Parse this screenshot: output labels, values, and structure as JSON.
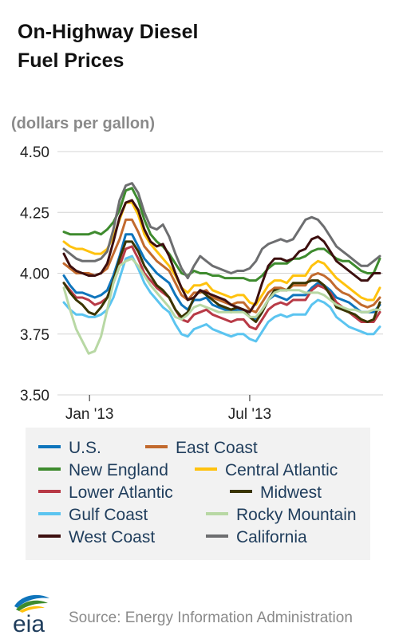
{
  "title_line1": "On-Highway Diesel",
  "title_line2": "Fuel Prices",
  "unit_label": "(dollars per gallon)",
  "source": "Source: Energy Information Administration",
  "logo_text": "eia",
  "chart_data": {
    "type": "line",
    "title": "On-Highway Diesel Fuel Prices",
    "ylabel": "(dollars per gallon)",
    "xlabel": "",
    "ylim": [
      3.5,
      4.5
    ],
    "yticks": [
      3.5,
      3.75,
      4.0,
      4.25,
      4.5
    ],
    "ytick_labels": [
      "3.50",
      "3.75",
      "4.00",
      "4.25",
      "4.50"
    ],
    "x_tick_labels": [
      "Jan '13",
      "Jul '13"
    ],
    "grid": true,
    "legend_position": "bottom",
    "x": [
      "2012-12-03",
      "2012-12-10",
      "2012-12-17",
      "2012-12-24",
      "2012-12-31",
      "2013-01-07",
      "2013-01-14",
      "2013-01-21",
      "2013-01-28",
      "2013-02-04",
      "2013-02-11",
      "2013-02-18",
      "2013-02-25",
      "2013-03-04",
      "2013-03-11",
      "2013-03-18",
      "2013-03-25",
      "2013-04-01",
      "2013-04-08",
      "2013-04-15",
      "2013-04-22",
      "2013-04-29",
      "2013-05-06",
      "2013-05-13",
      "2013-05-20",
      "2013-05-27",
      "2013-06-03",
      "2013-06-10",
      "2013-06-17",
      "2013-06-24",
      "2013-07-01",
      "2013-07-08",
      "2013-07-15",
      "2013-07-22",
      "2013-07-29",
      "2013-08-05",
      "2013-08-12",
      "2013-08-19",
      "2013-08-26",
      "2013-09-02",
      "2013-09-09",
      "2013-09-16",
      "2013-09-23",
      "2013-09-30",
      "2013-10-07",
      "2013-10-14",
      "2013-10-21",
      "2013-10-28",
      "2013-11-04",
      "2013-11-11",
      "2013-11-18",
      "2013-11-25"
    ],
    "series": [
      {
        "name": "U.S.",
        "color": "#0f75bc",
        "values": [
          3.99,
          3.95,
          3.92,
          3.92,
          3.91,
          3.9,
          3.91,
          3.93,
          3.99,
          4.07,
          4.16,
          4.16,
          4.11,
          4.06,
          4.03,
          4.0,
          3.98,
          3.96,
          3.91,
          3.87,
          3.85,
          3.89,
          3.89,
          3.9,
          3.87,
          3.86,
          3.85,
          3.84,
          3.85,
          3.85,
          3.82,
          3.81,
          3.85,
          3.89,
          3.91,
          3.9,
          3.89,
          3.91,
          3.91,
          3.91,
          3.94,
          3.96,
          3.95,
          3.93,
          3.9,
          3.89,
          3.88,
          3.86,
          3.84,
          3.84,
          3.84,
          3.87
        ]
      },
      {
        "name": "East Coast",
        "color": "#c26a2e",
        "values": [
          4.04,
          4.02,
          4.0,
          4.0,
          4.0,
          3.99,
          4.0,
          4.02,
          4.08,
          4.14,
          4.22,
          4.22,
          4.17,
          4.11,
          4.08,
          4.05,
          4.03,
          4.01,
          3.96,
          3.91,
          3.89,
          3.92,
          3.92,
          3.93,
          3.9,
          3.89,
          3.88,
          3.87,
          3.88,
          3.88,
          3.85,
          3.84,
          3.88,
          3.92,
          3.94,
          3.94,
          3.93,
          3.95,
          3.95,
          3.95,
          3.99,
          4.0,
          3.99,
          3.97,
          3.94,
          3.92,
          3.91,
          3.89,
          3.87,
          3.86,
          3.87,
          3.9
        ]
      },
      {
        "name": "New England",
        "color": "#3e8b2e",
        "values": [
          4.17,
          4.16,
          4.16,
          4.16,
          4.16,
          4.17,
          4.16,
          4.18,
          4.21,
          4.26,
          4.34,
          4.35,
          4.3,
          4.22,
          4.16,
          4.13,
          4.11,
          4.08,
          4.04,
          4.0,
          3.99,
          4.01,
          4.0,
          4.0,
          3.99,
          3.99,
          3.98,
          3.98,
          3.98,
          3.98,
          3.97,
          3.97,
          3.99,
          4.02,
          4.04,
          4.04,
          4.04,
          4.06,
          4.06,
          4.07,
          4.09,
          4.1,
          4.1,
          4.08,
          4.06,
          4.05,
          4.05,
          4.03,
          4.01,
          4.0,
          4.0,
          4.06
        ]
      },
      {
        "name": "Central Atlantic",
        "color": "#ffc20e",
        "values": [
          4.13,
          4.11,
          4.1,
          4.1,
          4.09,
          4.08,
          4.08,
          4.1,
          4.15,
          4.22,
          4.29,
          4.29,
          4.24,
          4.16,
          4.12,
          4.09,
          4.06,
          4.03,
          3.99,
          3.94,
          3.92,
          3.95,
          3.95,
          3.96,
          3.93,
          3.92,
          3.91,
          3.9,
          3.91,
          3.91,
          3.88,
          3.87,
          3.91,
          3.95,
          3.97,
          3.97,
          3.96,
          3.99,
          3.99,
          3.99,
          4.03,
          4.05,
          4.04,
          4.01,
          3.98,
          3.96,
          3.94,
          3.92,
          3.9,
          3.89,
          3.89,
          3.94
        ]
      },
      {
        "name": "Lower Atlantic",
        "color": "#b83a46",
        "values": [
          3.96,
          3.93,
          3.9,
          3.9,
          3.89,
          3.87,
          3.88,
          3.9,
          3.96,
          4.03,
          4.1,
          4.11,
          4.06,
          4.0,
          3.97,
          3.94,
          3.92,
          3.9,
          3.85,
          3.81,
          3.8,
          3.83,
          3.84,
          3.85,
          3.83,
          3.82,
          3.81,
          3.8,
          3.81,
          3.81,
          3.78,
          3.77,
          3.81,
          3.85,
          3.87,
          3.88,
          3.87,
          3.89,
          3.89,
          3.89,
          3.93,
          3.95,
          3.94,
          3.92,
          3.88,
          3.86,
          3.84,
          3.82,
          3.8,
          3.8,
          3.8,
          3.84
        ]
      },
      {
        "name": "Midwest",
        "color": "#3a3500",
        "values": [
          3.96,
          3.92,
          3.89,
          3.87,
          3.84,
          3.83,
          3.86,
          3.9,
          3.97,
          4.06,
          4.13,
          4.13,
          4.09,
          4.03,
          3.99,
          3.95,
          3.93,
          3.9,
          3.85,
          3.82,
          3.84,
          3.9,
          3.93,
          3.91,
          3.89,
          3.87,
          3.86,
          3.85,
          3.86,
          3.85,
          3.82,
          3.8,
          3.84,
          3.89,
          3.93,
          3.93,
          3.93,
          3.96,
          3.96,
          3.96,
          3.97,
          3.97,
          3.95,
          3.91,
          3.86,
          3.85,
          3.84,
          3.83,
          3.81,
          3.8,
          3.81,
          3.88
        ]
      },
      {
        "name": "Gulf Coast",
        "color": "#5bc4f0",
        "values": [
          3.88,
          3.85,
          3.83,
          3.83,
          3.82,
          3.82,
          3.83,
          3.85,
          3.9,
          3.98,
          4.06,
          4.07,
          4.02,
          3.96,
          3.92,
          3.89,
          3.86,
          3.84,
          3.79,
          3.75,
          3.74,
          3.77,
          3.78,
          3.79,
          3.77,
          3.76,
          3.75,
          3.74,
          3.75,
          3.75,
          3.73,
          3.72,
          3.76,
          3.8,
          3.82,
          3.83,
          3.82,
          3.83,
          3.83,
          3.83,
          3.87,
          3.89,
          3.88,
          3.86,
          3.82,
          3.8,
          3.78,
          3.77,
          3.76,
          3.75,
          3.75,
          3.78
        ]
      },
      {
        "name": "Rocky Mountain",
        "color": "#b8d8a4",
        "values": [
          3.94,
          3.85,
          3.77,
          3.72,
          3.67,
          3.68,
          3.74,
          3.85,
          3.96,
          4.03,
          4.05,
          4.06,
          4.03,
          3.99,
          3.95,
          3.92,
          3.89,
          3.86,
          3.82,
          3.81,
          3.83,
          3.86,
          3.87,
          3.86,
          3.85,
          3.84,
          3.84,
          3.84,
          3.84,
          3.84,
          3.82,
          3.82,
          3.85,
          3.89,
          3.92,
          3.93,
          3.93,
          3.93,
          3.93,
          3.92,
          3.92,
          3.92,
          3.91,
          3.89,
          3.87,
          3.86,
          3.85,
          3.85,
          3.84,
          3.84,
          3.85,
          3.85
        ]
      },
      {
        "name": "West Coast",
        "color": "#3d0f0f",
        "values": [
          4.08,
          4.03,
          4.01,
          4.0,
          3.99,
          3.99,
          4.0,
          4.04,
          4.13,
          4.23,
          4.29,
          4.3,
          4.26,
          4.18,
          4.13,
          4.11,
          4.12,
          4.07,
          4.0,
          3.94,
          3.89,
          3.9,
          3.93,
          3.92,
          3.91,
          3.9,
          3.89,
          3.87,
          3.86,
          3.85,
          3.84,
          3.88,
          3.96,
          4.03,
          4.06,
          4.06,
          4.05,
          4.06,
          4.09,
          4.1,
          4.14,
          4.15,
          4.13,
          4.09,
          4.05,
          4.03,
          4.01,
          3.99,
          3.97,
          3.97,
          4.0,
          4.0
        ]
      },
      {
        "name": "California",
        "color": "#6d6e70",
        "values": [
          4.1,
          4.08,
          4.06,
          4.05,
          4.05,
          4.05,
          4.06,
          4.09,
          4.18,
          4.3,
          4.36,
          4.37,
          4.33,
          4.25,
          4.19,
          4.18,
          4.2,
          4.15,
          4.08,
          4.02,
          3.98,
          4.03,
          4.07,
          4.05,
          4.03,
          4.02,
          4.01,
          4.0,
          4.01,
          4.01,
          4.02,
          4.05,
          4.1,
          4.12,
          4.13,
          4.14,
          4.13,
          4.14,
          4.18,
          4.22,
          4.23,
          4.22,
          4.19,
          4.15,
          4.11,
          4.09,
          4.07,
          4.05,
          4.03,
          4.03,
          4.05,
          4.07
        ]
      }
    ]
  }
}
